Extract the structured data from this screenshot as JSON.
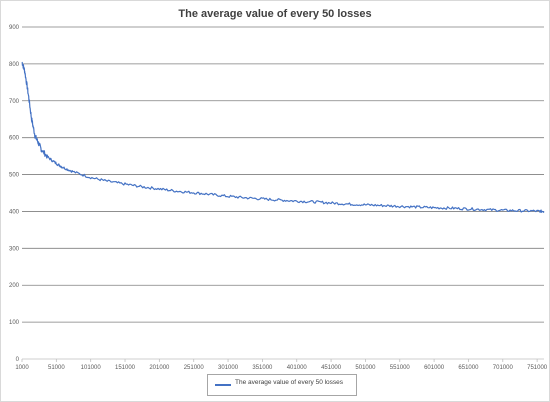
{
  "chart_data": {
    "type": "line",
    "title": "The average value of every 50 losses",
    "xlabel": "",
    "ylabel": "",
    "ylim": [
      0,
      900
    ],
    "xlim": [
      1000,
      761000
    ],
    "y_ticks": [
      "0",
      "100",
      "200",
      "300",
      "400",
      "500",
      "600",
      "700",
      "800",
      "900"
    ],
    "x_ticks": [
      "1000",
      "51000",
      "101000",
      "151000",
      "201000",
      "251000",
      "301000",
      "351000",
      "401000",
      "451000",
      "501000",
      "551000",
      "601000",
      "651000",
      "701000",
      "751000"
    ],
    "grid": true,
    "legend_position": "bottom",
    "series": [
      {
        "name": "The average value of every 50 losses",
        "color": "#4472c4",
        "x": [
          1000,
          5000,
          10000,
          15000,
          20000,
          25000,
          30000,
          40000,
          51000,
          60000,
          75000,
          101000,
          125000,
          151000,
          175000,
          201000,
          226000,
          251000,
          276000,
          301000,
          326000,
          351000,
          376000,
          401000,
          426000,
          451000,
          476000,
          501000,
          526000,
          551000,
          576000,
          601000,
          626000,
          651000,
          676000,
          701000,
          726000,
          751000,
          761000
        ],
        "y": [
          805,
          780,
          720,
          650,
          605,
          585,
          565,
          545,
          530,
          520,
          508,
          492,
          482,
          474,
          467,
          461,
          455,
          451,
          446,
          441,
          437,
          434,
          431,
          428,
          426,
          423,
          420,
          418,
          416,
          414,
          412,
          410,
          409,
          407,
          405,
          403,
          402,
          401,
          400
        ]
      }
    ]
  }
}
